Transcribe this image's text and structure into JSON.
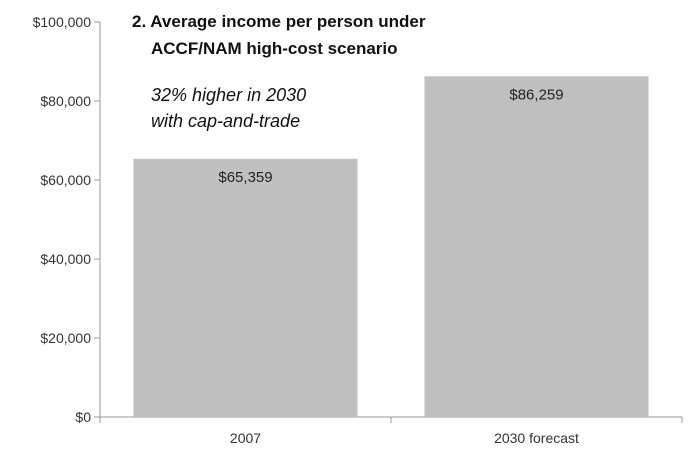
{
  "chart_data": {
    "type": "bar",
    "title_lines": [
      "2. Average income per person under",
      "ACCF/NAM high-cost scenario"
    ],
    "annotation_lines": [
      "32% higher in 2030",
      "with cap-and-trade"
    ],
    "categories": [
      "2007",
      "2030 forecast"
    ],
    "values": [
      65359,
      86259
    ],
    "value_labels": [
      "$65,359",
      "$86,259"
    ],
    "ylim": [
      0,
      100000
    ],
    "yticks": [
      0,
      20000,
      40000,
      60000,
      80000,
      100000
    ],
    "ytick_labels": [
      "$0",
      "$20,000",
      "$40,000",
      "$60,000",
      "$80,000",
      "$100,000"
    ],
    "xlabel": "",
    "ylabel": "",
    "grid": false,
    "bar_color": "#c0c0c0",
    "axis_color": "#999999"
  }
}
